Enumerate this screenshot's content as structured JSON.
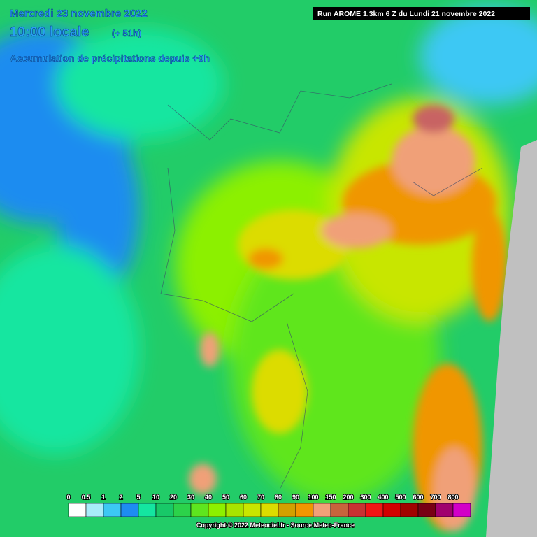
{
  "header": {
    "date": "Mercredi 23 novembre 2022",
    "time": "10:00 locale",
    "offset": "(+ 51h)",
    "subtitle": "Accumulation de précipitations depuis +0h",
    "run": "Run AROME 1.3km 6 Z du Lundi 21 novembre 2022"
  },
  "legend": {
    "labels": [
      "0",
      "0.5",
      "1",
      "2",
      "5",
      "10",
      "20",
      "30",
      "40",
      "50",
      "60",
      "70",
      "80",
      "90",
      "100",
      "150",
      "200",
      "300",
      "400",
      "500",
      "600",
      "700",
      "800"
    ],
    "colors": [
      "#ffffff",
      "#a8ecfa",
      "#3cc8f4",
      "#1e8cf0",
      "#14e6a0",
      "#18c868",
      "#2cd24a",
      "#5ee61e",
      "#8cf000",
      "#a8e400",
      "#c8e600",
      "#dcdc00",
      "#d2a000",
      "#f09600",
      "#f0a078",
      "#c8643c",
      "#c83232",
      "#f01414",
      "#d20000",
      "#a00000",
      "#780014",
      "#a0006e",
      "#d200c8"
    ]
  },
  "footer": {
    "copyright": "Copyright © 2022 Meteociel.fr - Source Meteo-France"
  }
}
